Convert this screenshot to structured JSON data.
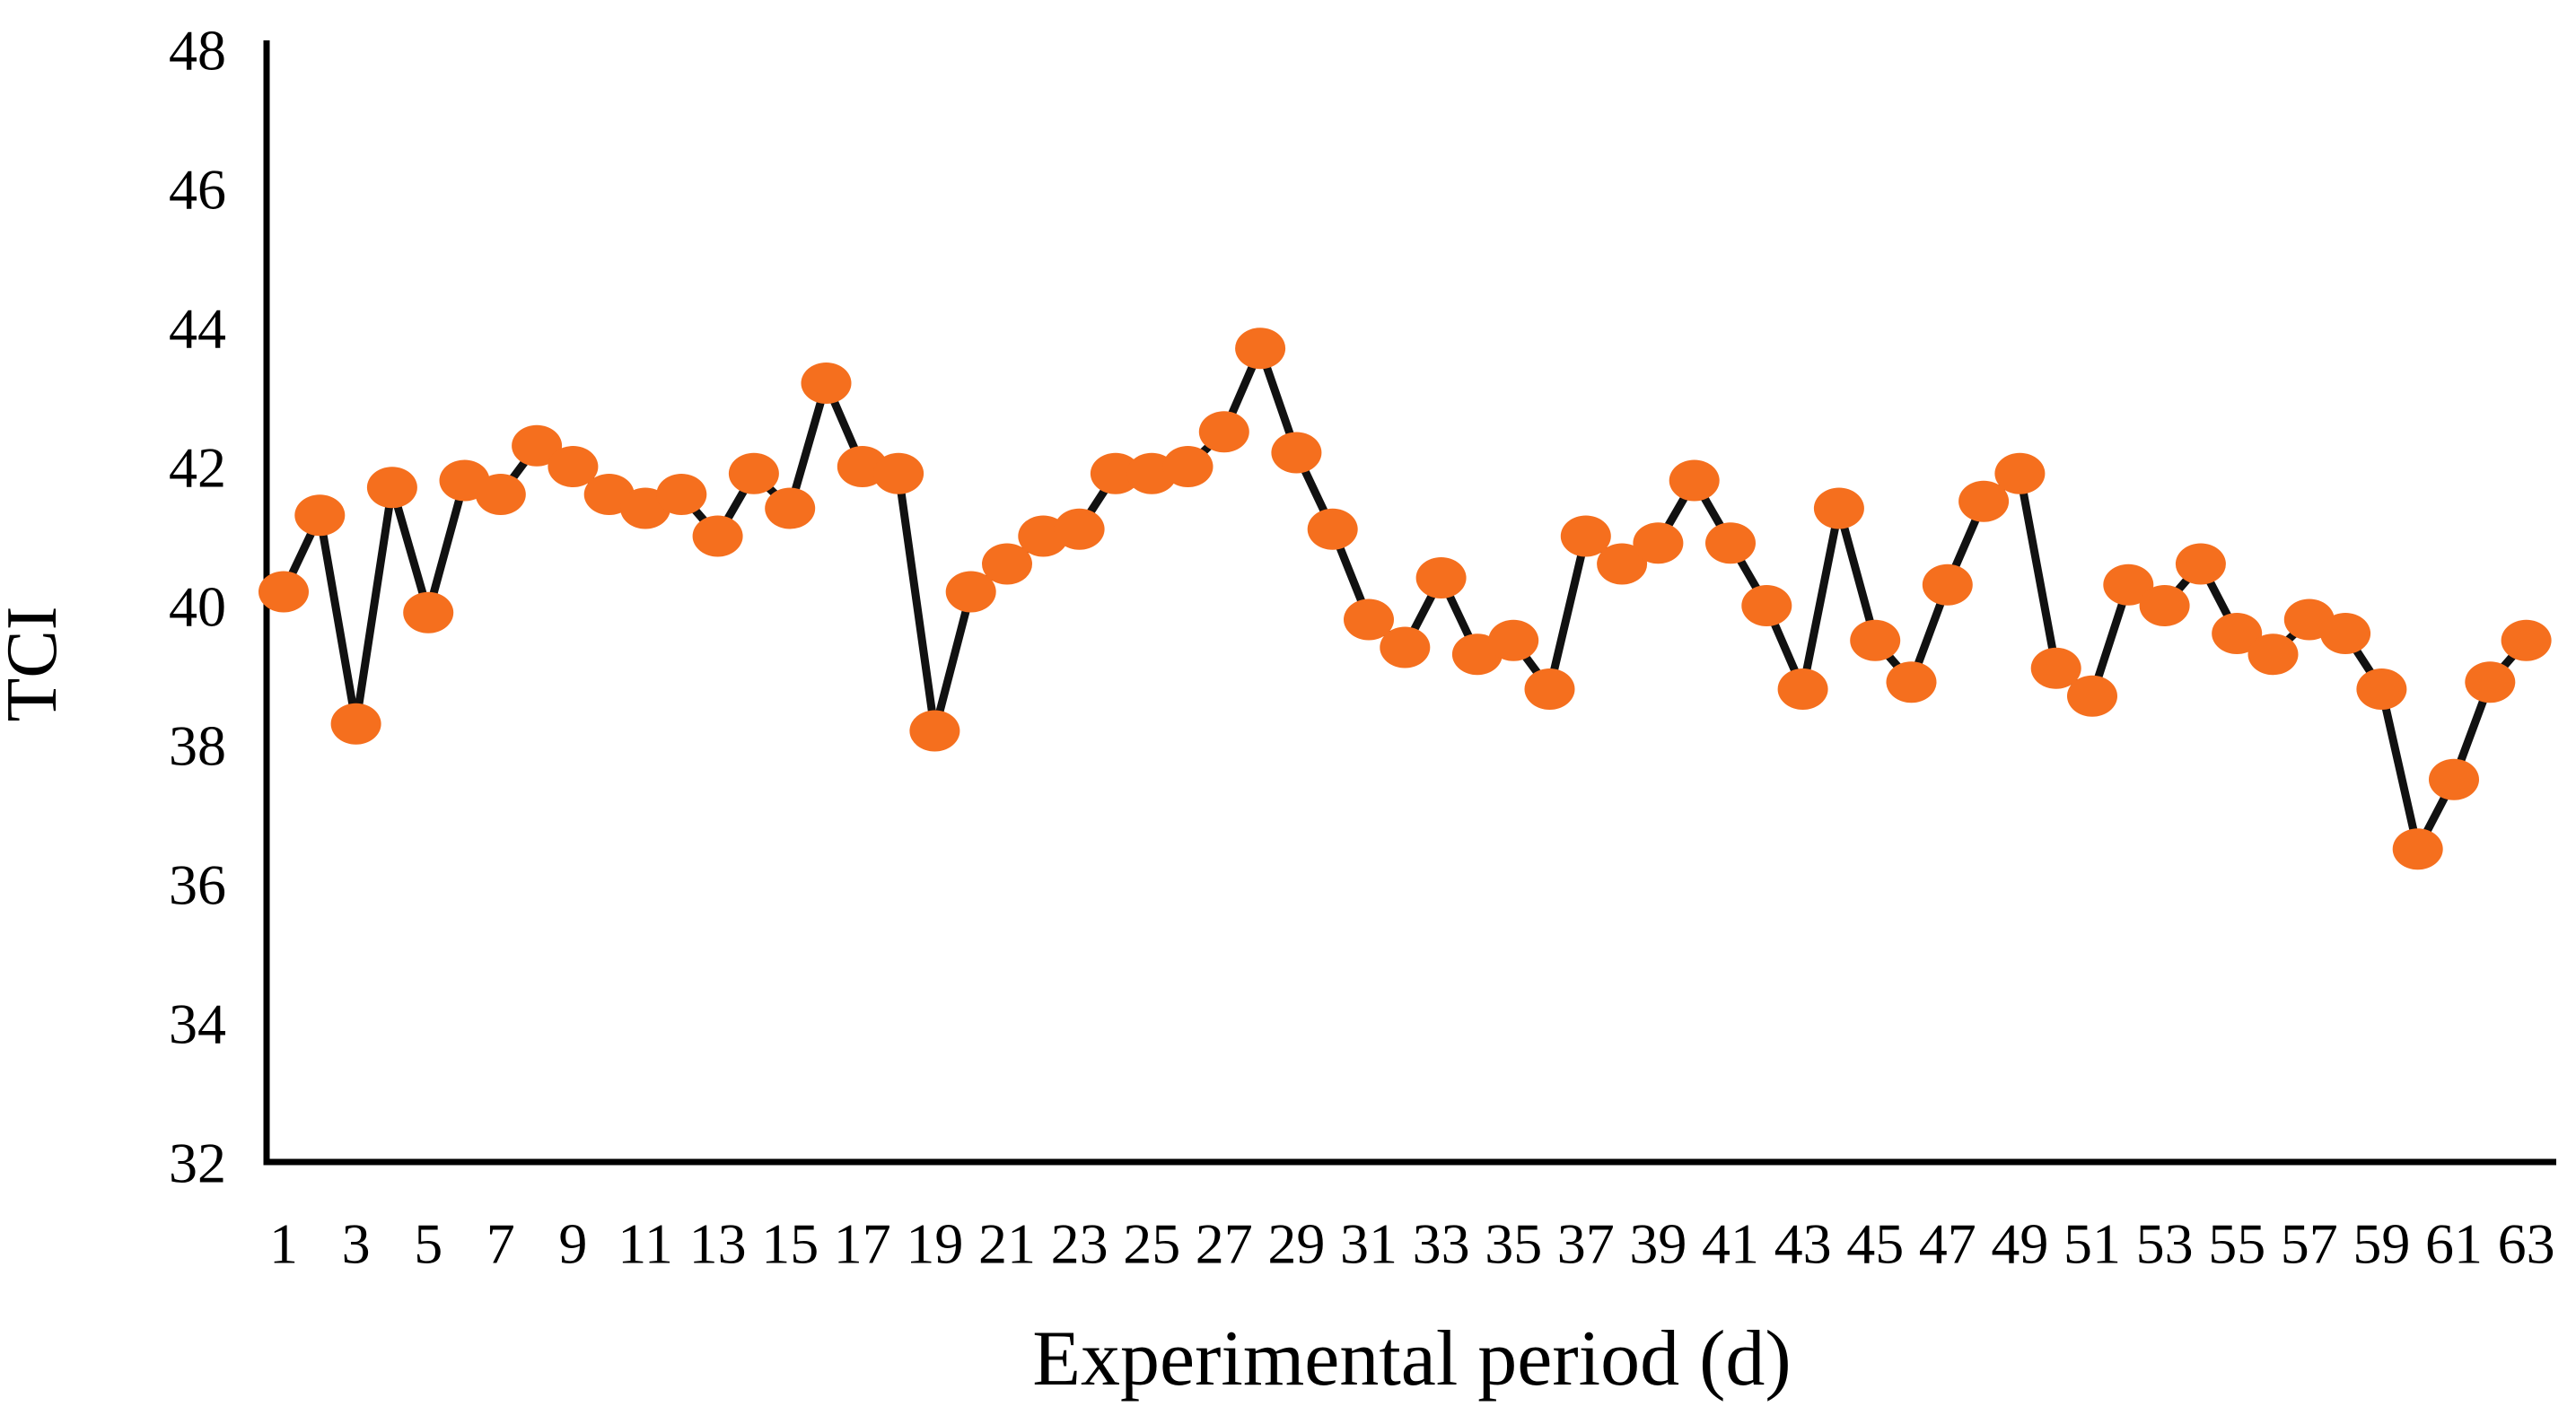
{
  "chart_data": {
    "type": "line",
    "title": "",
    "xlabel": "Experimental period (d)",
    "ylabel": "TCI",
    "x": [
      1,
      2,
      3,
      4,
      5,
      6,
      7,
      8,
      9,
      10,
      11,
      12,
      13,
      14,
      15,
      16,
      17,
      18,
      19,
      20,
      21,
      22,
      23,
      24,
      25,
      26,
      27,
      28,
      29,
      30,
      31,
      32,
      33,
      34,
      35,
      36,
      37,
      38,
      39,
      40,
      41,
      42,
      43,
      44,
      45,
      46,
      47,
      48,
      49,
      50,
      51,
      52,
      53,
      54,
      55,
      56,
      57,
      58,
      59,
      60,
      61,
      62,
      63
    ],
    "values": [
      40.2,
      41.3,
      38.3,
      41.7,
      39.9,
      41.8,
      41.6,
      42.3,
      42.0,
      41.6,
      41.4,
      41.6,
      41.0,
      41.9,
      41.4,
      43.2,
      42.0,
      41.9,
      38.2,
      40.2,
      40.6,
      41.0,
      41.1,
      41.9,
      41.9,
      42.0,
      42.5,
      43.7,
      42.2,
      41.1,
      39.8,
      39.4,
      40.4,
      39.3,
      39.5,
      38.8,
      41.0,
      40.6,
      40.9,
      41.8,
      40.9,
      40.0,
      38.8,
      41.4,
      39.5,
      38.9,
      40.3,
      41.5,
      41.9,
      39.1,
      38.7,
      40.3,
      40.0,
      40.6,
      39.6,
      39.3,
      39.8,
      39.6,
      38.8,
      36.5,
      37.5,
      38.9,
      39.5
    ],
    "xtick_labels": [
      1,
      3,
      5,
      7,
      9,
      11,
      13,
      15,
      17,
      19,
      21,
      23,
      25,
      27,
      29,
      31,
      33,
      35,
      37,
      39,
      41,
      43,
      45,
      47,
      49,
      51,
      53,
      55,
      57,
      59,
      61,
      63
    ],
    "ytick_labels": [
      32,
      34,
      36,
      38,
      40,
      42,
      44,
      46,
      48
    ],
    "ylim": [
      32,
      48
    ],
    "xlim": [
      1,
      63
    ],
    "grid": false,
    "legend": null,
    "marker": "circle",
    "colors": {
      "marker": "#f56f1e",
      "line": "#111111",
      "axis": "#000000",
      "text": "#000000",
      "background": "#ffffff"
    }
  }
}
